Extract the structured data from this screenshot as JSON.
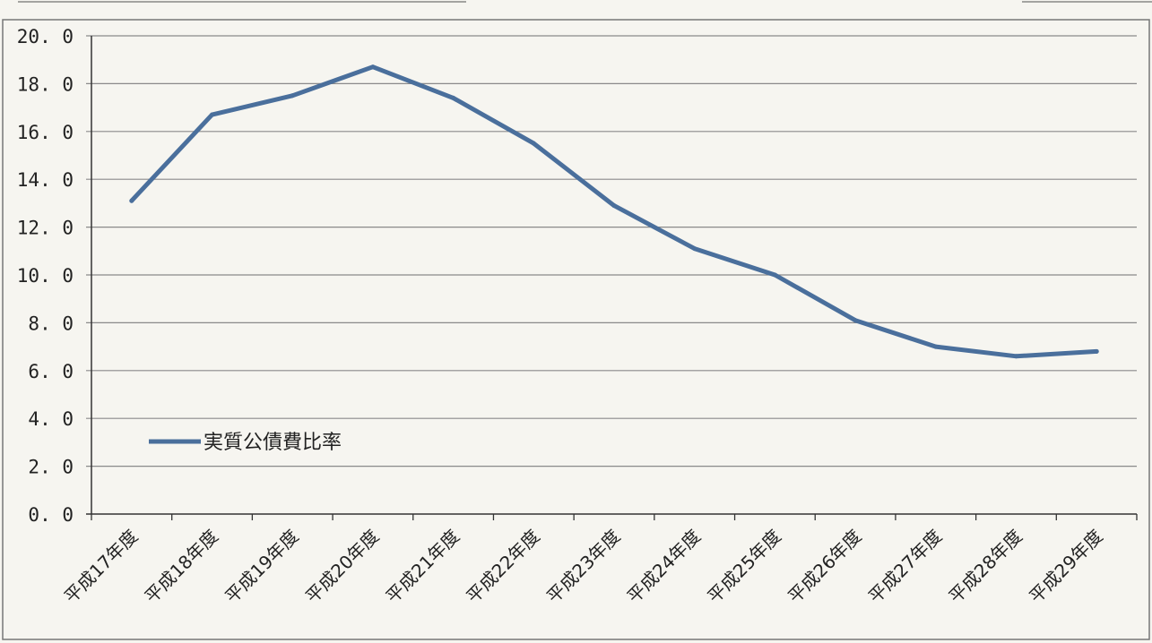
{
  "chart_data": {
    "type": "line",
    "categories": [
      "平成17年度",
      "平成18年度",
      "平成19年度",
      "平成20年度",
      "平成21年度",
      "平成22年度",
      "平成23年度",
      "平成24年度",
      "平成25年度",
      "平成26年度",
      "平成27年度",
      "平成28年度",
      "平成29年度"
    ],
    "series": [
      {
        "name": "実質公債費比率",
        "color": "#4a6f9c",
        "values": [
          13.1,
          16.7,
          17.5,
          18.7,
          17.4,
          15.5,
          12.9,
          11.1,
          10.0,
          8.1,
          7.0,
          6.6,
          6.8
        ]
      }
    ],
    "yticks": [
      "0. 0",
      "2. 0",
      "4. 0",
      "6. 0",
      "8. 0",
      "10. 0",
      "12. 0",
      "14. 0",
      "16. 0",
      "18. 0",
      "20. 0"
    ],
    "ylim": [
      0,
      20
    ],
    "grid": true,
    "legend_position": "inside-lower-left"
  }
}
